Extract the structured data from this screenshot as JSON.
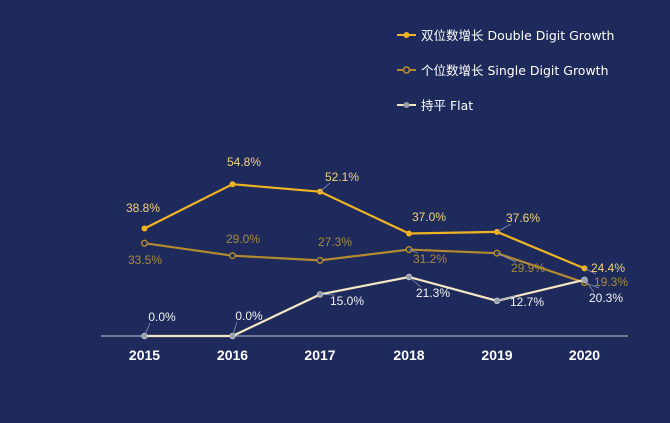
{
  "chart_data": {
    "type": "line",
    "categories": [
      "2015",
      "2016",
      "2017",
      "2018",
      "2019",
      "2020"
    ],
    "ylim": [
      0,
      60
    ],
    "legend_position": "top-right",
    "series": [
      {
        "name": "双位数增长  Double Digit Growth",
        "color": "#f0b323",
        "label_color": "#f3d27a",
        "values": [
          38.8,
          54.8,
          52.1,
          37.0,
          37.6,
          24.4
        ],
        "labels": [
          "38.8%",
          "54.8%",
          "52.1%",
          "37.0%",
          "37.6%",
          "24.4%"
        ]
      },
      {
        "name": "个位数增长  Single Digit Growth",
        "color": "#b58a2e",
        "label_color": "#a88a3a",
        "values": [
          33.5,
          29.0,
          27.3,
          31.2,
          29.9,
          19.3
        ],
        "labels": [
          "33.5%",
          "29.0%",
          "27.3%",
          "31.2%",
          "29.9%",
          "19.3%"
        ]
      },
      {
        "name": "持平 Flat",
        "color": "#f4e7c3",
        "label_color": "#f2f2f2",
        "values": [
          0.0,
          0.0,
          15.0,
          21.3,
          12.7,
          20.3
        ],
        "labels": [
          "0.0%",
          "0.0%",
          "15.0%",
          "21.3%",
          "12.7%",
          "20.3%"
        ]
      }
    ]
  }
}
